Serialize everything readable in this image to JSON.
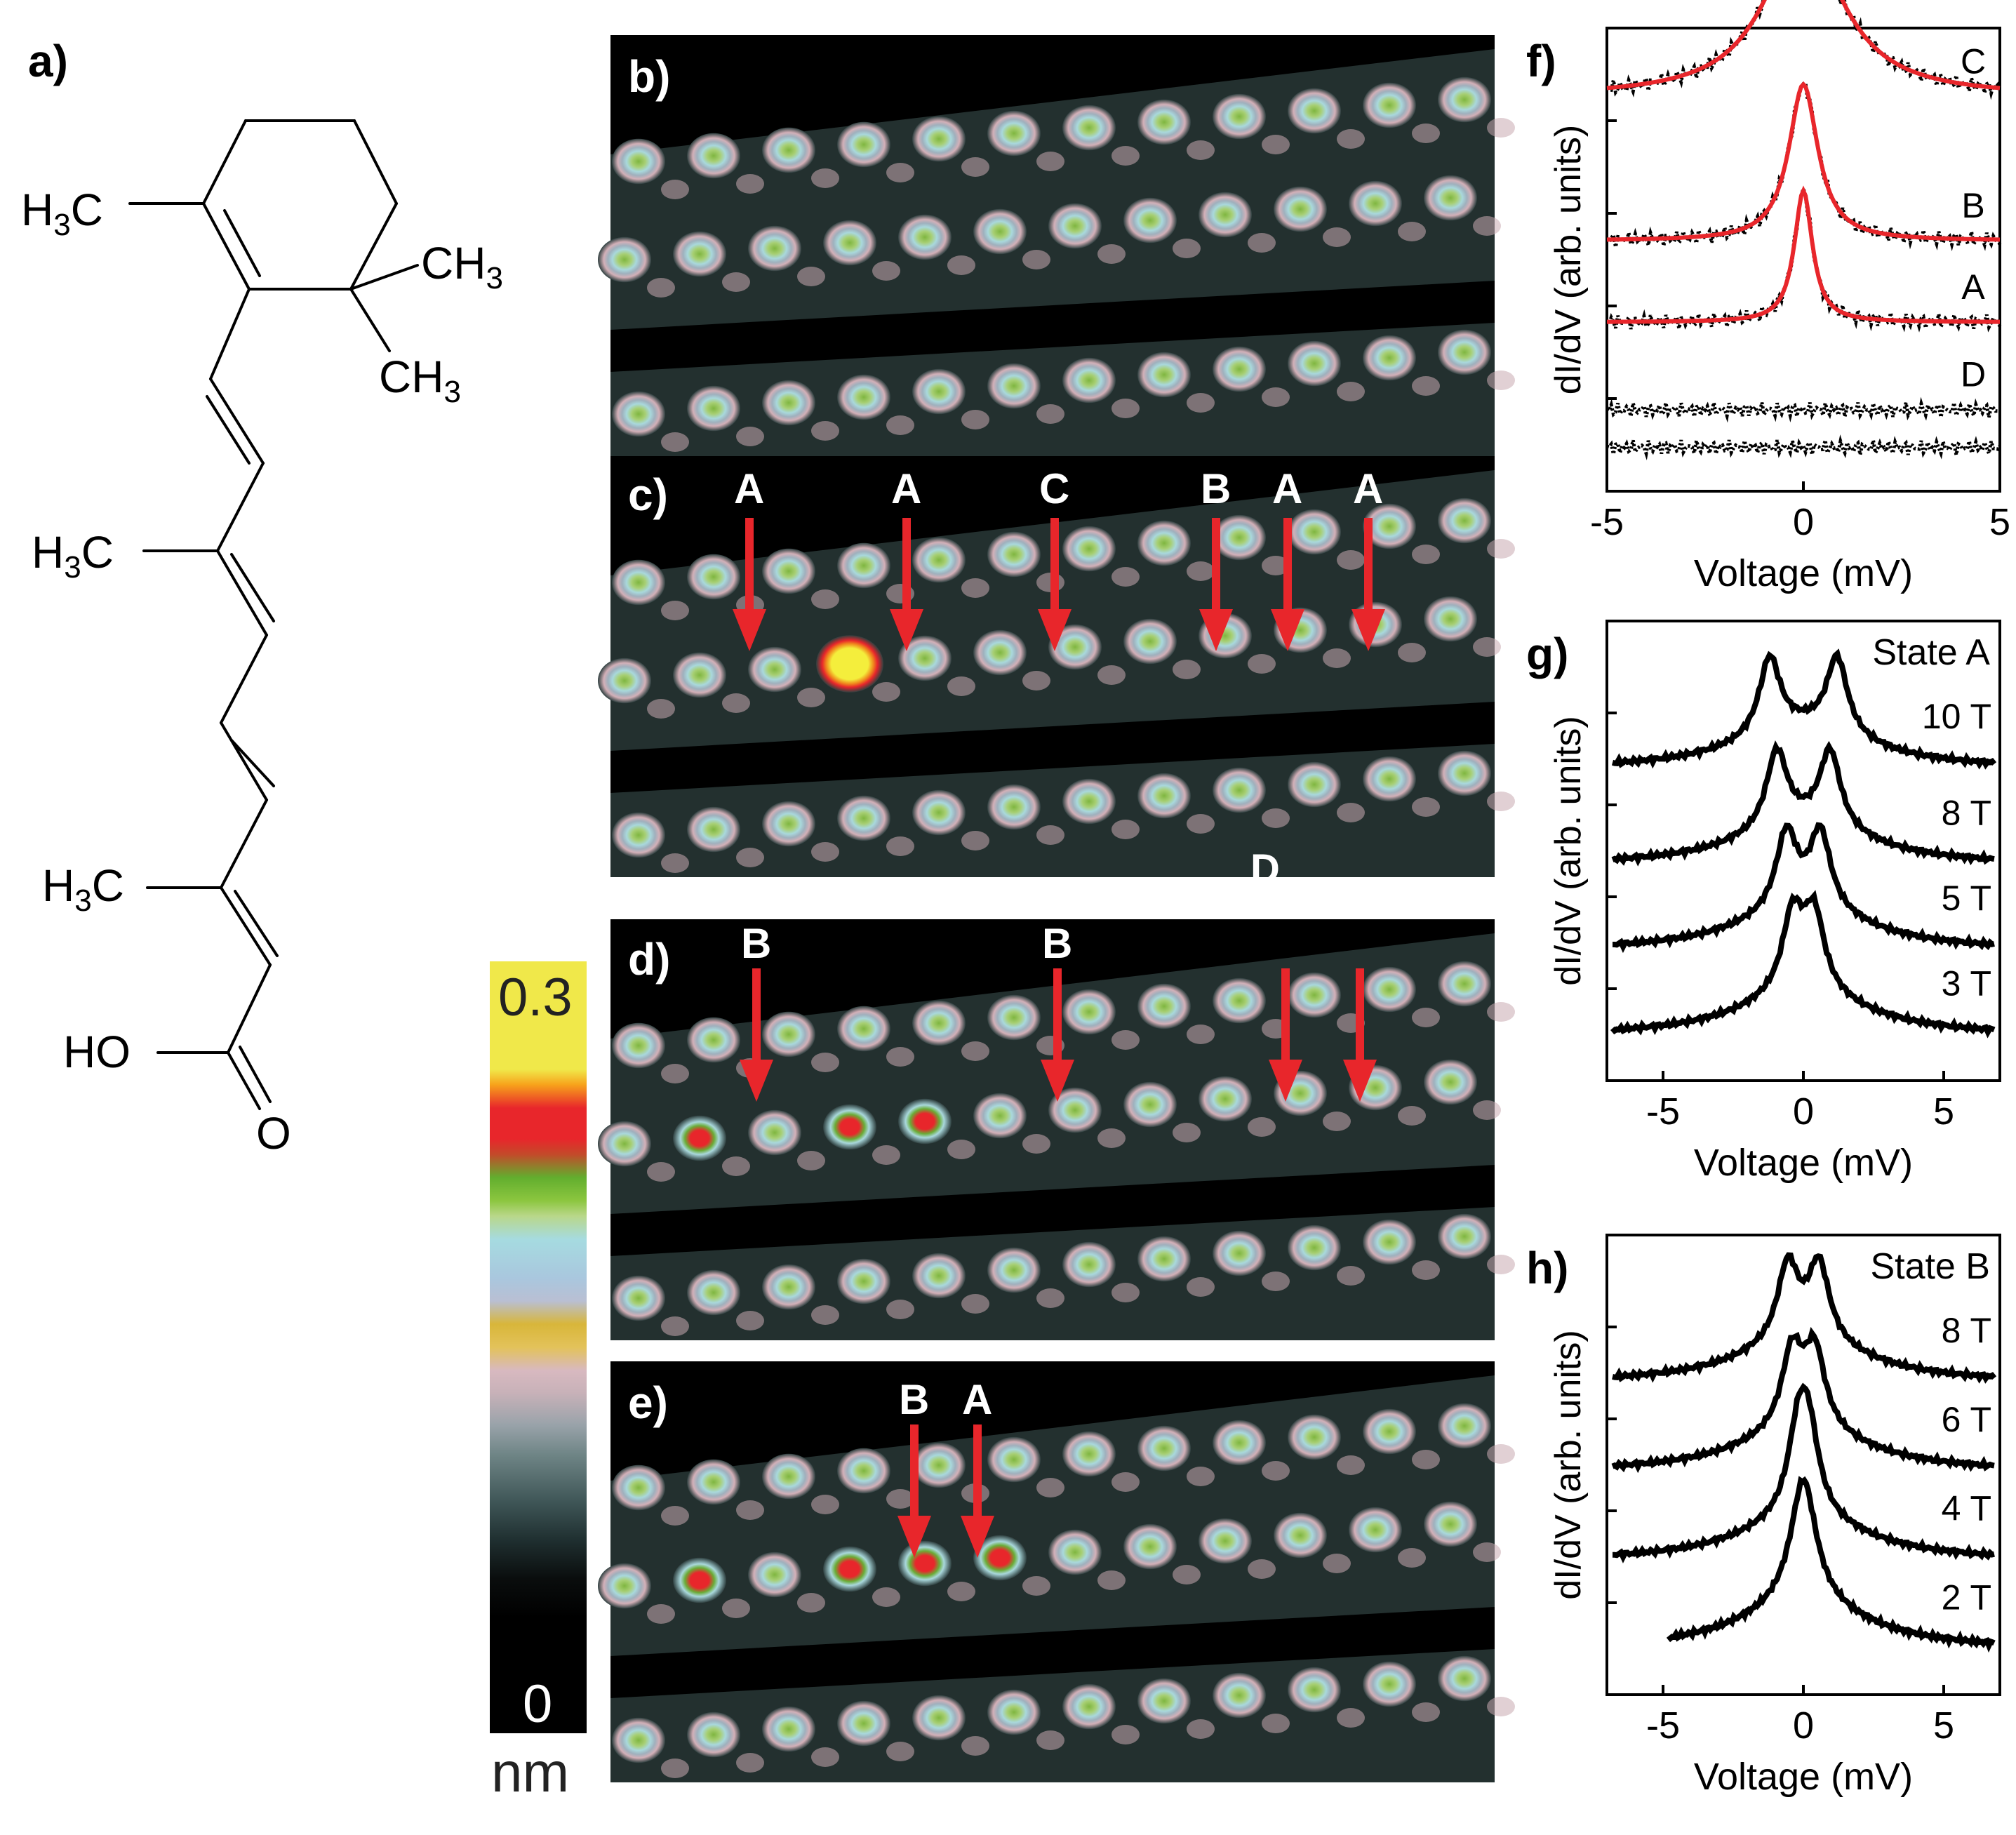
{
  "panels": {
    "a": {
      "label": "a)"
    },
    "b": {
      "label": "b)"
    },
    "c": {
      "label": "c)",
      "arrows": [
        "A",
        "A",
        "C",
        "B",
        "A",
        "A"
      ],
      "extra": "D"
    },
    "d": {
      "label": "d)",
      "arrows": [
        "B",
        "B",
        "",
        ""
      ]
    },
    "e": {
      "label": "e)",
      "arrows": [
        "B",
        "A"
      ]
    },
    "f": {
      "label": "f)"
    },
    "g": {
      "label": "g)"
    },
    "h": {
      "label": "h)"
    }
  },
  "molecule": {
    "groups": {
      "h3c_1": {
        "main": "H",
        "sub": "3",
        "rest": "C"
      },
      "ch3_1": {
        "main": "CH",
        "sub": "3"
      },
      "ch3_2": {
        "main": "CH",
        "sub": "3"
      },
      "h3c_2": {
        "main": "H",
        "sub": "3",
        "rest": "C"
      },
      "h3c_3": {
        "main": "H",
        "sub": "3",
        "rest": "C"
      },
      "ho": "HO",
      "o": "O"
    }
  },
  "colorbar": {
    "max": "0.3",
    "min": "0",
    "unit": "nm"
  },
  "chart_data": [
    {
      "panel": "f",
      "type": "line",
      "xlabel": "Voltage (mV)",
      "ylabel": "dI/dV (arb. units)",
      "xlim": [
        -5,
        5
      ],
      "xticks": [
        "-5",
        "0",
        "5"
      ],
      "series": [
        {
          "name": "C",
          "kind": "lorentz",
          "offset": 4.4,
          "amp": 2.6,
          "width": 1.2,
          "fit": true
        },
        {
          "name": "B",
          "kind": "lorentz",
          "offset": 2.1,
          "amp": 2.5,
          "width": 0.45,
          "fit": true
        },
        {
          "name": "A",
          "kind": "lorentz",
          "offset": 0.8,
          "amp": 2.1,
          "width": 0.28,
          "fit": true
        },
        {
          "name": "D",
          "kind": "flat",
          "offset": -0.6
        },
        {
          "name": "",
          "kind": "flat",
          "offset": -1.2
        }
      ],
      "colors": {
        "data": "#000000",
        "fit": "#e8262b"
      }
    },
    {
      "panel": "g",
      "type": "line",
      "title": "State A",
      "xlabel": "Voltage (mV)",
      "ylabel": "dI/dV (arb. units)",
      "xlim": [
        -7,
        7
      ],
      "xticks": [
        "-5",
        "0",
        "5"
      ],
      "series": [
        {
          "name": "10 T",
          "split": 1.2,
          "offset": 3.6
        },
        {
          "name": "8 T",
          "split": 0.95,
          "offset": 2.3
        },
        {
          "name": "5 T",
          "split": 0.6,
          "offset": 1.15
        },
        {
          "name": "3 T",
          "split": 0.38,
          "offset": 0.0
        }
      ]
    },
    {
      "panel": "h",
      "type": "line",
      "title": "State B",
      "xlabel": "Voltage (mV)",
      "ylabel": "dI/dV (arb. units)",
      "xlim": [
        -7,
        7
      ],
      "xticks": [
        "-5",
        "0",
        "5"
      ],
      "series": [
        {
          "name": "8 T",
          "split": 0.55,
          "offset": 3.6
        },
        {
          "name": "6 T",
          "split": 0.4,
          "offset": 2.4
        },
        {
          "name": "4 T",
          "split": 0.18,
          "offset": 1.2
        },
        {
          "name": "2 T",
          "split": 0.0,
          "offset": 0.0
        }
      ]
    }
  ],
  "colors": {
    "arrow": "#e8262b",
    "line": "#000000"
  }
}
